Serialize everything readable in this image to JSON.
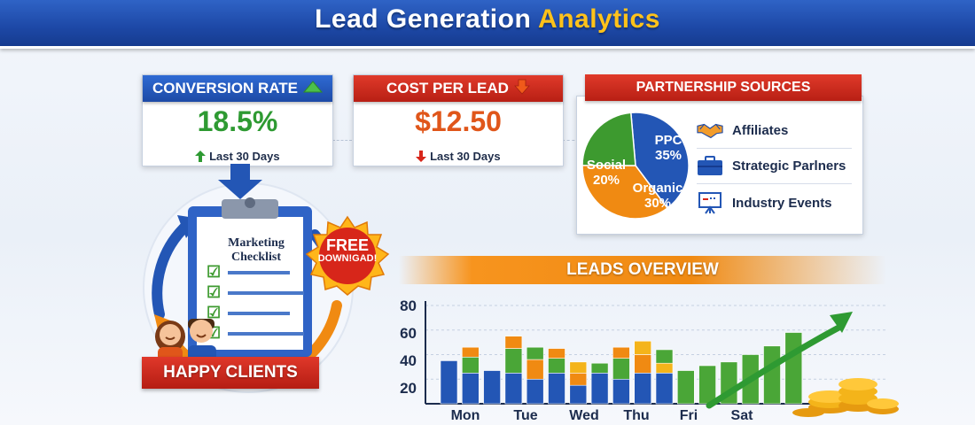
{
  "header": {
    "title_part1": "Lead Generation",
    "title_part2": "Analytics"
  },
  "conversion": {
    "title": "CONVERSION RATE",
    "value": "18.5%",
    "period": "Last 30 Days",
    "trend": "up",
    "color": "#2e9a32",
    "icon": "triangle-up-icon"
  },
  "cost": {
    "title": "COST PER LEAD",
    "value": "$12.50",
    "period": "Last 30 Days",
    "trend": "down",
    "color": "#e0561a",
    "icon": "arrow-down-icon"
  },
  "partnership": {
    "title": "PARTNERSHIP SOURCES",
    "pie": [
      {
        "label": "PPC",
        "value": "35%",
        "pct": 35,
        "color": "#2356b5"
      },
      {
        "label": "Organic",
        "value": "30%",
        "pct": 30,
        "color": "#f08a12"
      },
      {
        "label": "Social",
        "value": "20%",
        "pct": 20,
        "color": "#3d9a2f"
      }
    ],
    "sources": [
      {
        "label": "Affiliates",
        "icon": "handshake-icon"
      },
      {
        "label": "Strategic Parlners",
        "icon": "briefcase-icon"
      },
      {
        "label": "Industry Events",
        "icon": "presentation-board-icon"
      }
    ]
  },
  "checklist": {
    "title": "Marketing Checklist",
    "badge_line1": "FREE",
    "badge_line2": "DOWN!GAD!",
    "ribbon": "HAPPY CLIENTS"
  },
  "chart_data": {
    "type": "bar",
    "title": "LEADS OVERVIEW",
    "categories": [
      "Mon",
      "Tue",
      "Wed",
      "Thu",
      "Fri",
      "Sat"
    ],
    "yticks": [
      "80",
      "60",
      "40",
      "20"
    ],
    "ylim": [
      0,
      80
    ],
    "colors": {
      "blue": "#2356b5",
      "orange": "#f08a12",
      "green": "#4aa637",
      "yellow": "#f4b41a"
    },
    "bars": [
      {
        "x": 0,
        "segments": [
          {
            "v": 35,
            "c": "blue"
          }
        ]
      },
      {
        "x": 0,
        "segments": [
          {
            "v": 25,
            "c": "blue"
          },
          {
            "v": 13,
            "c": "green"
          },
          {
            "v": 8,
            "c": "orange"
          }
        ]
      },
      {
        "x": 0,
        "segments": [
          {
            "v": 27,
            "c": "blue"
          }
        ]
      },
      {
        "x": 1,
        "segments": [
          {
            "v": 25,
            "c": "blue"
          },
          {
            "v": 20,
            "c": "green"
          },
          {
            "v": 10,
            "c": "orange"
          }
        ]
      },
      {
        "x": 1,
        "segments": [
          {
            "v": 20,
            "c": "blue"
          },
          {
            "v": 16,
            "c": "orange"
          },
          {
            "v": 10,
            "c": "green"
          }
        ]
      },
      {
        "x": 2,
        "segments": [
          {
            "v": 25,
            "c": "blue"
          },
          {
            "v": 12,
            "c": "green"
          },
          {
            "v": 8,
            "c": "orange"
          }
        ]
      },
      {
        "x": 2,
        "segments": [
          {
            "v": 15,
            "c": "blue"
          },
          {
            "v": 10,
            "c": "orange"
          },
          {
            "v": 9,
            "c": "yellow"
          }
        ]
      },
      {
        "x": 3,
        "segments": [
          {
            "v": 25,
            "c": "blue"
          },
          {
            "v": 8,
            "c": "green"
          }
        ]
      },
      {
        "x": 3,
        "segments": [
          {
            "v": 20,
            "c": "blue"
          },
          {
            "v": 17,
            "c": "green"
          },
          {
            "v": 9,
            "c": "orange"
          }
        ]
      },
      {
        "x": 4,
        "segments": [
          {
            "v": 25,
            "c": "blue"
          },
          {
            "v": 15,
            "c": "orange"
          },
          {
            "v": 11,
            "c": "yellow"
          }
        ]
      },
      {
        "x": 4,
        "segments": [
          {
            "v": 25,
            "c": "blue"
          },
          {
            "v": 8,
            "c": "yellow"
          },
          {
            "v": 11,
            "c": "green"
          }
        ]
      },
      {
        "x": 5,
        "segments": [
          {
            "v": 27,
            "c": "green"
          }
        ]
      },
      {
        "x": 5,
        "segments": [
          {
            "v": 31,
            "c": "green"
          }
        ]
      },
      {
        "x": 5,
        "segments": [
          {
            "v": 34,
            "c": "green"
          }
        ]
      },
      {
        "x": 5,
        "segments": [
          {
            "v": 40,
            "c": "green"
          }
        ]
      },
      {
        "x": 5,
        "segments": [
          {
            "v": 47,
            "c": "green"
          }
        ]
      },
      {
        "x": 5,
        "segments": [
          {
            "v": 58,
            "c": "green"
          }
        ]
      }
    ]
  }
}
